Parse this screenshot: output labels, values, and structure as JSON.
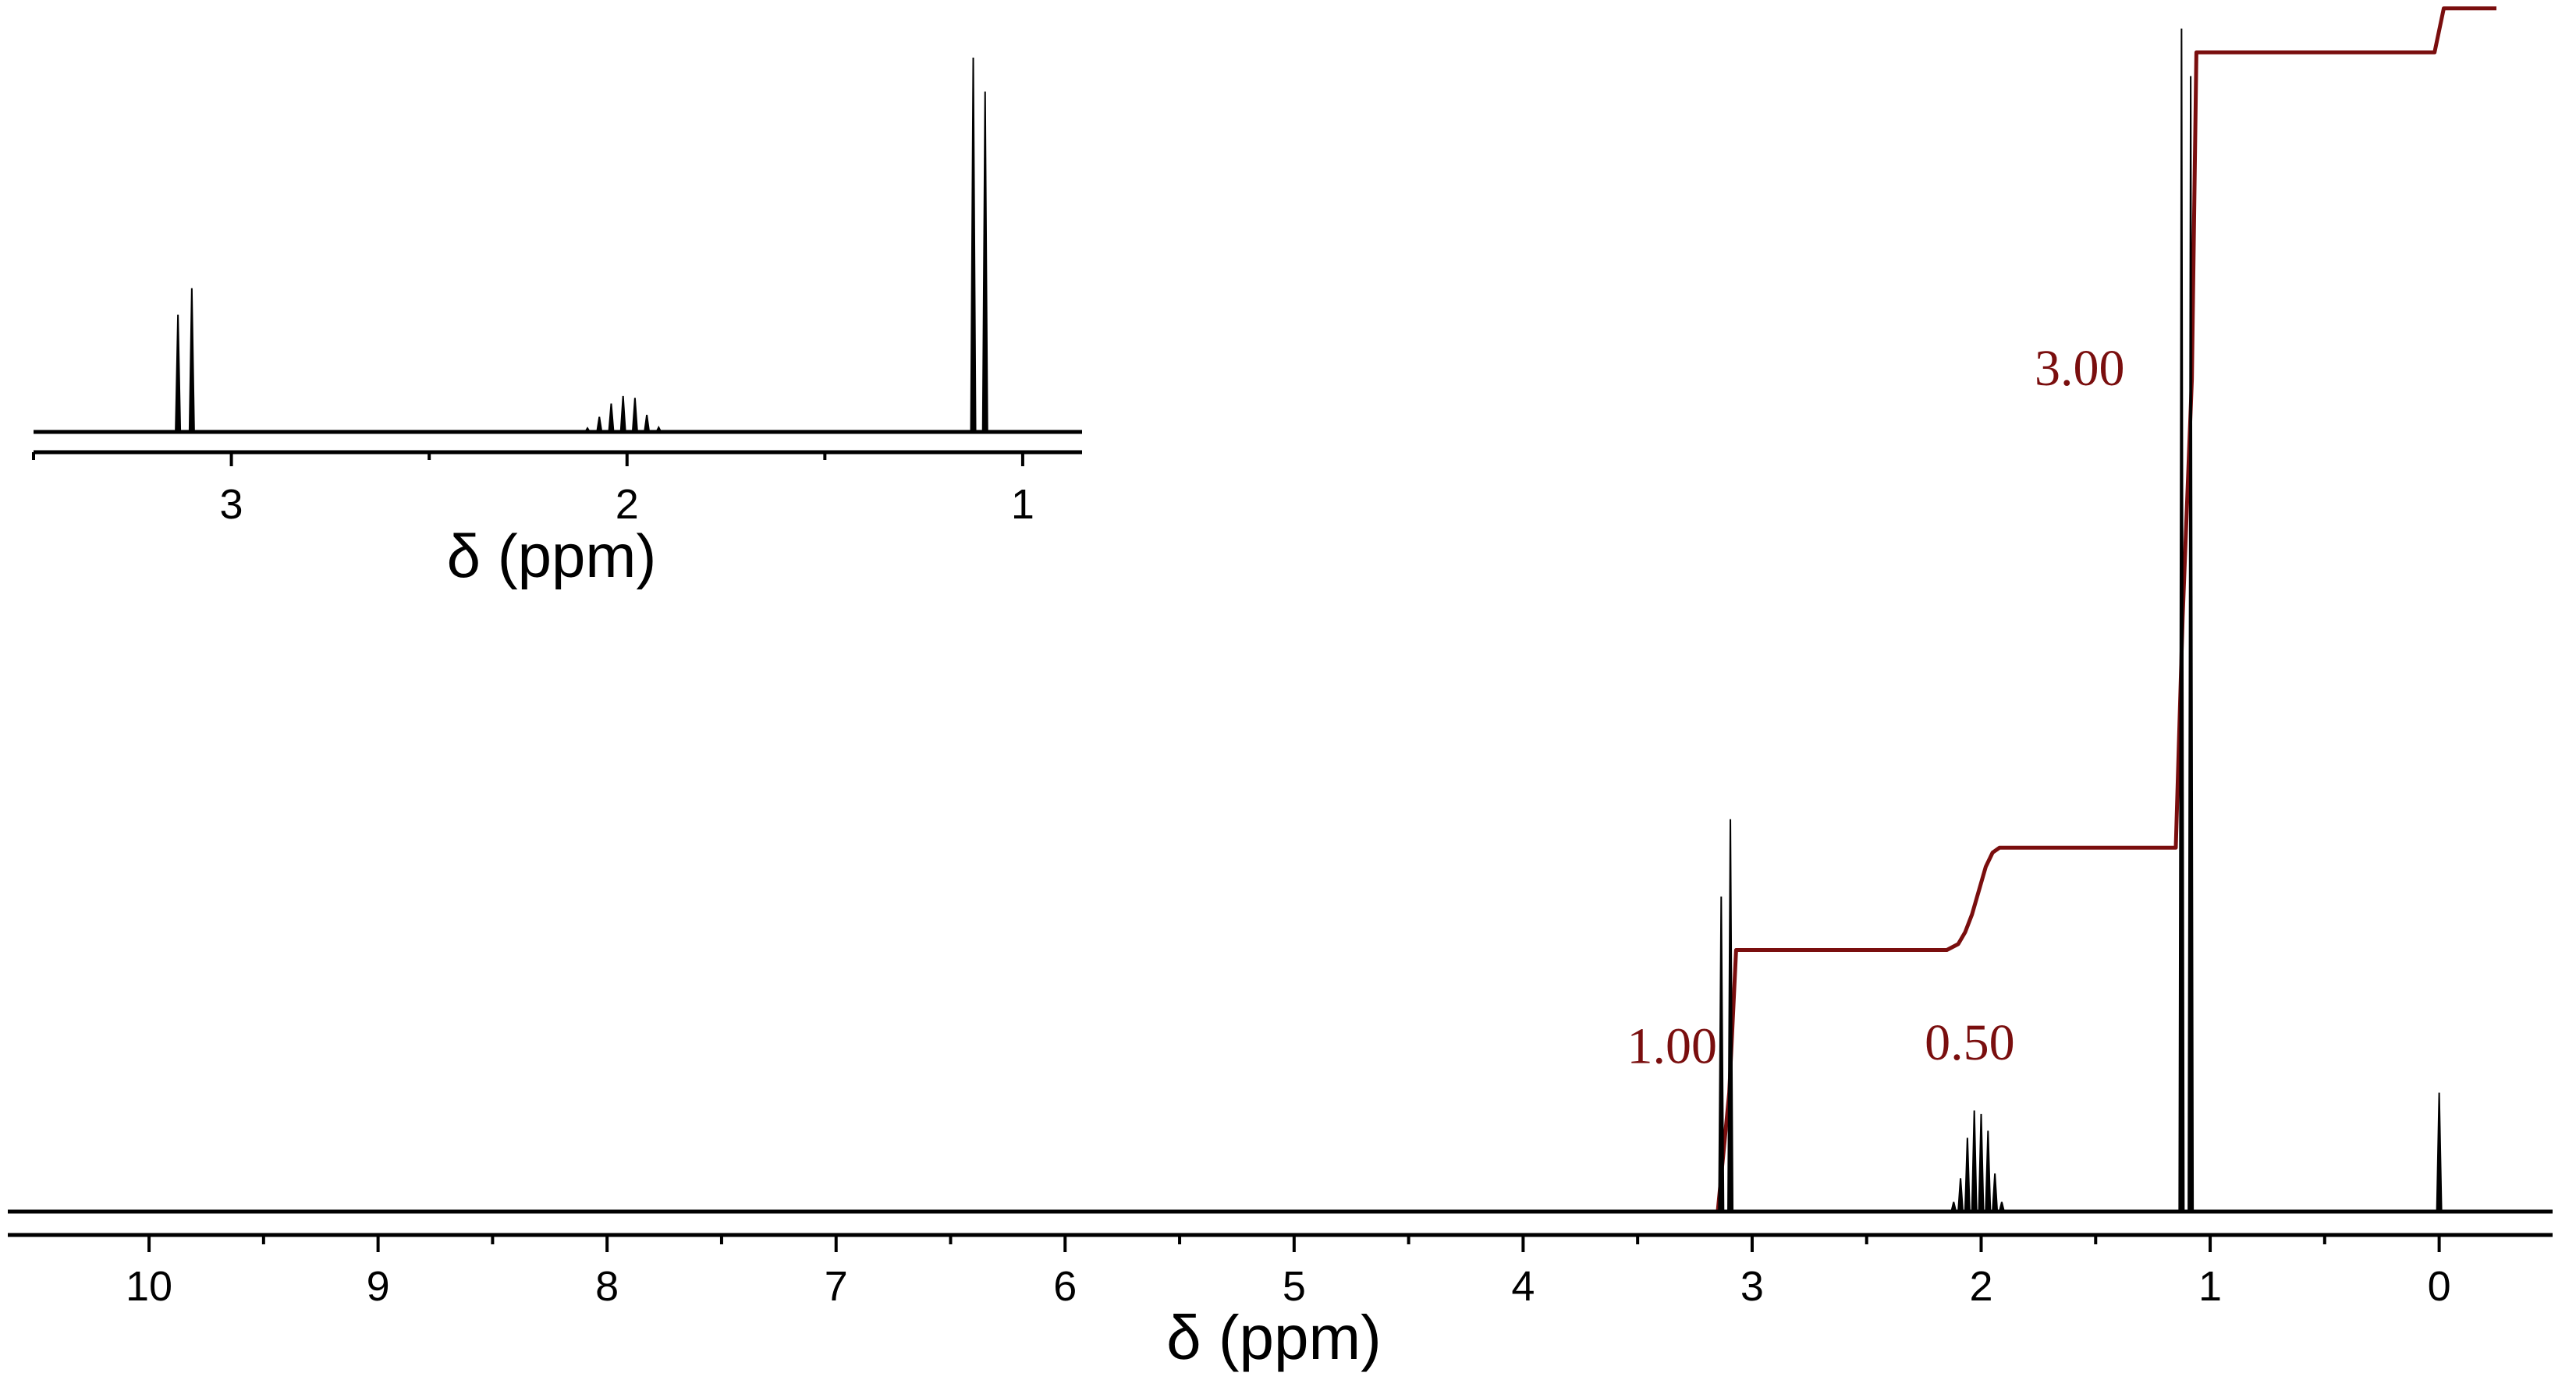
{
  "colors": {
    "spectrum": "#000000",
    "integral": "#7a0e0e"
  },
  "chart_data": [
    {
      "type": "line",
      "name": "main-spectrum",
      "xlabel": "δ (ppm)",
      "x_reversed": true,
      "xlim": [
        10.3,
        -0.25
      ],
      "x_ticks": [
        10,
        9,
        8,
        7,
        6,
        5,
        4,
        3,
        2,
        1,
        0
      ],
      "x_tick_labels": [
        "10",
        "9",
        "8",
        "7",
        "6",
        "5",
        "4",
        "3",
        "2",
        "1",
        "0"
      ],
      "grid": false,
      "peaks": [
        {
          "ppm": 3.135,
          "height": 0.265
        },
        {
          "ppm": 3.095,
          "height": 0.33
        },
        {
          "ppm": 2.12,
          "height": 0.008
        },
        {
          "ppm": 2.09,
          "height": 0.028
        },
        {
          "ppm": 2.06,
          "height": 0.062
        },
        {
          "ppm": 2.03,
          "height": 0.085
        },
        {
          "ppm": 2.0,
          "height": 0.082
        },
        {
          "ppm": 1.97,
          "height": 0.068
        },
        {
          "ppm": 1.94,
          "height": 0.032
        },
        {
          "ppm": 1.91,
          "height": 0.008
        },
        {
          "ppm": 1.125,
          "height": 0.995
        },
        {
          "ppm": 1.085,
          "height": 0.955
        },
        {
          "ppm": 0.0,
          "height": 0.1
        }
      ],
      "integral": {
        "points": [
          [
            10.3,
            0.0
          ],
          [
            3.15,
            0.0
          ],
          [
            3.1,
            0.1
          ],
          [
            3.07,
            0.22
          ],
          [
            2.15,
            0.22
          ],
          [
            2.1,
            0.225
          ],
          [
            2.07,
            0.235
          ],
          [
            2.04,
            0.25
          ],
          [
            2.01,
            0.27
          ],
          [
            1.98,
            0.29
          ],
          [
            1.95,
            0.302
          ],
          [
            1.92,
            0.306
          ],
          [
            1.15,
            0.306
          ],
          [
            1.12,
            0.5
          ],
          [
            1.08,
            0.7
          ],
          [
            1.06,
            0.975
          ],
          [
            0.02,
            0.975
          ],
          [
            -0.02,
            1.012
          ],
          [
            -0.25,
            1.012
          ]
        ],
        "labels": [
          {
            "text": "1.00",
            "ppm": 3.35,
            "level": 0.125
          },
          {
            "text": "0.50",
            "ppm": 2.05,
            "level": 0.128
          },
          {
            "text": "3.00",
            "ppm": 1.57,
            "level": 0.695
          }
        ]
      }
    },
    {
      "type": "line",
      "name": "inset-spectrum",
      "xlabel": "δ (ppm)",
      "x_reversed": true,
      "xlim": [
        3.5,
        0.85
      ],
      "x_ticks": [
        3,
        2,
        1
      ],
      "x_tick_labels": [
        "3",
        "2",
        "1"
      ],
      "grid": false,
      "peaks": [
        {
          "ppm": 3.135,
          "height": 0.31
        },
        {
          "ppm": 3.1,
          "height": 0.38
        },
        {
          "ppm": 2.1,
          "height": 0.01
        },
        {
          "ppm": 2.07,
          "height": 0.04
        },
        {
          "ppm": 2.04,
          "height": 0.075
        },
        {
          "ppm": 2.01,
          "height": 0.095
        },
        {
          "ppm": 1.98,
          "height": 0.09
        },
        {
          "ppm": 1.95,
          "height": 0.045
        },
        {
          "ppm": 1.92,
          "height": 0.012
        },
        {
          "ppm": 1.125,
          "height": 0.99
        },
        {
          "ppm": 1.095,
          "height": 0.9
        }
      ]
    }
  ]
}
